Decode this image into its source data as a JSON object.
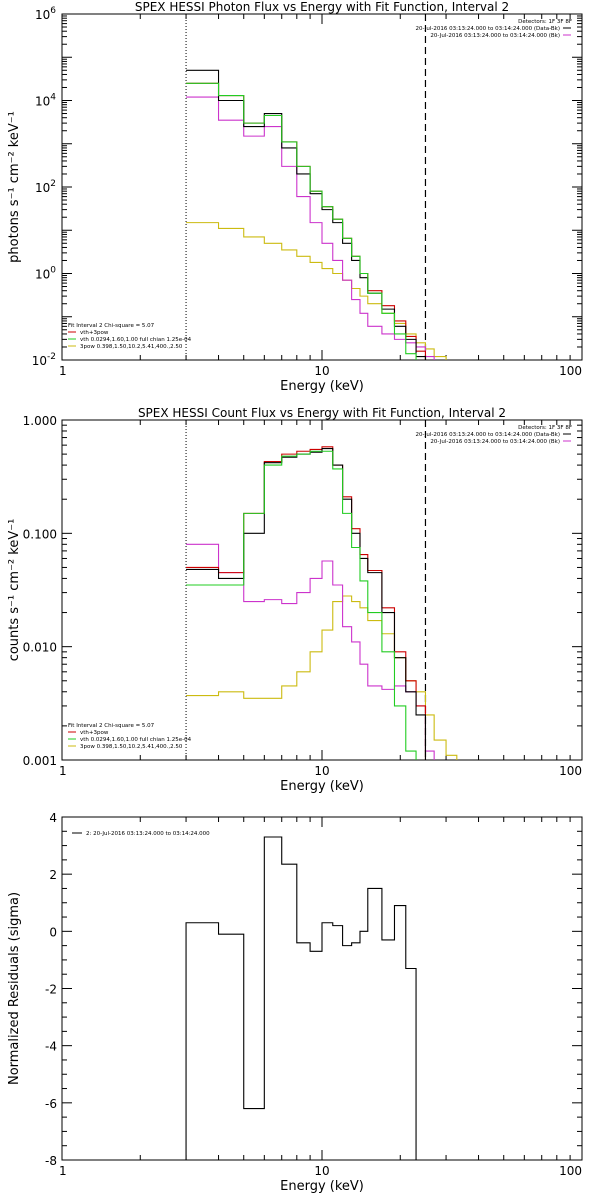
{
  "chart_data": [
    {
      "type": "line",
      "title": "SPEX HESSI Photon Flux vs Energy with Fit Function, Interval 2",
      "xlabel": "Energy (keV)",
      "ylabel": "photons s⁻¹ cm⁻² keV⁻¹",
      "xscale": "log",
      "yscale": "log",
      "xlim": [
        1,
        100
      ],
      "ylim": [
        0.01,
        1000000
      ],
      "x_ticks": [
        "1",
        "10",
        "100"
      ],
      "y_ticks": [
        {
          "value": 0.01,
          "mantissa": "10",
          "exp": "-2"
        },
        {
          "value": 1,
          "mantissa": "10",
          "exp": "0"
        },
        {
          "value": 100,
          "mantissa": "10",
          "exp": "2"
        },
        {
          "value": 10000,
          "mantissa": "10",
          "exp": "4"
        },
        {
          "value": 1000000,
          "mantissa": "10",
          "exp": "6"
        }
      ],
      "dotted_line_x": 3,
      "dashed_line_x": 25,
      "detectors": "Detectors: 1F 3F 8F",
      "legend_right": [
        {
          "text": "20-Jul-2016 03:13:24.000 to 03:14:24.000 (Data-Bk)",
          "color": "#000000"
        },
        {
          "text": "20-Jul-2016 03:13:24.000 to 03:14:24.000 (Bk)",
          "color": "#cc33cc"
        }
      ],
      "fit_header": "Fit Interval 2   Chi-square = 5.07",
      "legend_left": [
        {
          "text": "vth+3pow",
          "color": "#cc0000"
        },
        {
          "text": "vth 0.0294,1.60,1.00  full chian 1.25e-04",
          "color": "#22cc22"
        },
        {
          "text": "3pow 0.398,1.50,10.2,5.41,400.,2.50",
          "color": "#ccbb11"
        }
      ],
      "edges": [
        3,
        4,
        5,
        6,
        7,
        8,
        9,
        10,
        11,
        12,
        13,
        14,
        15,
        17,
        19,
        21,
        23,
        25,
        27,
        30
      ],
      "series": [
        {
          "name": "Data-Bk",
          "color": "#000000",
          "values": [
            50000,
            10000,
            2500,
            5000,
            800,
            200,
            70,
            30,
            15,
            5,
            2,
            0.8,
            0.35,
            0.15,
            0.06,
            0.03,
            0.012,
            null,
            null
          ]
        },
        {
          "name": "Bk",
          "color": "#cc33cc",
          "values": [
            12000,
            3500,
            1500,
            2500,
            300,
            60,
            15,
            5,
            2,
            0.7,
            0.25,
            0.12,
            0.06,
            0.04,
            0.03,
            0.025,
            0.02,
            0.012,
            null
          ]
        },
        {
          "name": "vth+3pow",
          "color": "#cc0000",
          "values": [
            25000,
            13000,
            3000,
            4500,
            1100,
            300,
            80,
            35,
            18,
            6.5,
            2.5,
            1,
            0.4,
            0.18,
            0.08,
            0.035,
            0.016,
            null,
            null
          ]
        },
        {
          "name": "vth",
          "color": "#22cc22",
          "values": [
            25000,
            13000,
            3000,
            4500,
            1100,
            300,
            80,
            35,
            18,
            6.5,
            2.5,
            1,
            0.35,
            0.12,
            0.04,
            0.014,
            null,
            null,
            null
          ]
        },
        {
          "name": "3pow",
          "color": "#ccbb11",
          "values": [
            15,
            11,
            7,
            5,
            3.5,
            2.5,
            1.8,
            1.3,
            1,
            0.7,
            0.45,
            0.3,
            0.2,
            0.12,
            0.07,
            0.04,
            0.025,
            0.018,
            0.012
          ]
        }
      ]
    },
    {
      "type": "line",
      "title": "SPEX HESSI Count Flux vs Energy with Fit Function, Interval 2",
      "xlabel": "Energy (keV)",
      "ylabel": "counts s⁻¹ cm⁻² keV⁻¹",
      "xscale": "log",
      "yscale": "log",
      "xlim": [
        1,
        100
      ],
      "ylim": [
        0.001,
        1
      ],
      "x_ticks": [
        "1",
        "10",
        "100"
      ],
      "y_ticks": [
        {
          "value": 0.001,
          "label": "0.001"
        },
        {
          "value": 0.01,
          "label": "0.010"
        },
        {
          "value": 0.1,
          "label": "0.100"
        },
        {
          "value": 1,
          "label": "1.000"
        }
      ],
      "dotted_line_x": 3,
      "dashed_line_x": 25,
      "detectors": "Detectors: 1F 3F 8F",
      "legend_right": [
        {
          "text": "20-Jul-2016 03:13:24.000 to 03:14:24.000 (Data-Bk)",
          "color": "#000000"
        },
        {
          "text": "20-Jul-2016 03:13:24.000 to 03:14:24.000 (Bk)",
          "color": "#cc33cc"
        }
      ],
      "fit_header": "Fit Interval 2   Chi-square = 5.07",
      "legend_left": [
        {
          "text": "vth+3pow",
          "color": "#cc0000"
        },
        {
          "text": "vth 0.0294,1.60,1.00  full chian 1.25e-04",
          "color": "#22cc22"
        },
        {
          "text": "3pow 0.398,1.50,10.2,5.41,400.,2.50",
          "color": "#ccbb11"
        }
      ],
      "edges": [
        3,
        4,
        5,
        6,
        7,
        8,
        9,
        10,
        11,
        12,
        13,
        14,
        15,
        17,
        19,
        21,
        23,
        25,
        27,
        30,
        33
      ],
      "series": [
        {
          "name": "Data-Bk",
          "color": "#000000",
          "values": [
            0.048,
            0.04,
            0.1,
            0.42,
            0.47,
            0.5,
            0.52,
            0.56,
            0.4,
            0.2,
            0.1,
            0.06,
            0.045,
            0.02,
            0.008,
            0.004,
            0.0025,
            null,
            null,
            null
          ]
        },
        {
          "name": "Bk",
          "color": "#cc33cc",
          "values": [
            0.08,
            0.045,
            0.025,
            0.026,
            0.024,
            0.03,
            0.04,
            0.057,
            0.035,
            0.015,
            0.011,
            0.007,
            0.0045,
            0.0042,
            0.0045,
            0.004,
            0.003,
            0.0012,
            null,
            null
          ]
        },
        {
          "name": "vth+3pow",
          "color": "#cc0000",
          "values": [
            0.05,
            0.045,
            0.15,
            0.43,
            0.5,
            0.53,
            0.55,
            0.58,
            0.4,
            0.21,
            0.11,
            0.065,
            0.047,
            0.022,
            0.009,
            0.005,
            0.003,
            null,
            null,
            null
          ]
        },
        {
          "name": "vth",
          "color": "#22cc22",
          "values": [
            0.035,
            0.035,
            0.15,
            0.4,
            0.48,
            0.5,
            0.53,
            0.53,
            0.37,
            0.15,
            0.075,
            0.038,
            0.02,
            0.009,
            0.003,
            0.0012,
            null,
            null,
            null,
            null
          ]
        },
        {
          "name": "3pow",
          "color": "#ccbb11",
          "values": [
            0.0037,
            0.004,
            0.0035,
            0.0035,
            0.0045,
            0.006,
            0.009,
            0.014,
            0.025,
            0.028,
            0.025,
            0.022,
            0.017,
            0.013,
            0.008,
            0.005,
            0.004,
            0.0025,
            0.0015,
            0.0011
          ]
        }
      ]
    },
    {
      "type": "line",
      "title": "",
      "xlabel": "Energy (keV)",
      "ylabel": "Normalized Residuals (sigma)",
      "xscale": "log",
      "yscale": "linear",
      "xlim": [
        1,
        100
      ],
      "ylim": [
        -8,
        4
      ],
      "x_ticks": [
        "1",
        "10",
        "100"
      ],
      "y_ticks": [
        {
          "value": -8,
          "label": "-8"
        },
        {
          "value": -6,
          "label": "-6"
        },
        {
          "value": -4,
          "label": "-4"
        },
        {
          "value": -2,
          "label": "-2"
        },
        {
          "value": 0,
          "label": "0"
        },
        {
          "value": 2,
          "label": "2"
        },
        {
          "value": 4,
          "label": "4"
        }
      ],
      "legend_text": "2: 20-Jul-2016 03:13:24.000 to 03:14:24.000",
      "edges": [
        3,
        4,
        5,
        6,
        7,
        8,
        9,
        10,
        11,
        12,
        13,
        14,
        15,
        17,
        19,
        21,
        23,
        25
      ],
      "series": [
        {
          "name": "",
          "color": "#000000",
          "values": [
            0.3,
            -0.1,
            -6.2,
            3.3,
            2.35,
            -0.4,
            -0.7,
            0.3,
            0.2,
            -0.5,
            -0.4,
            0,
            1.5,
            -0.3,
            0.9,
            -1.3,
            null
          ]
        }
      ]
    }
  ]
}
